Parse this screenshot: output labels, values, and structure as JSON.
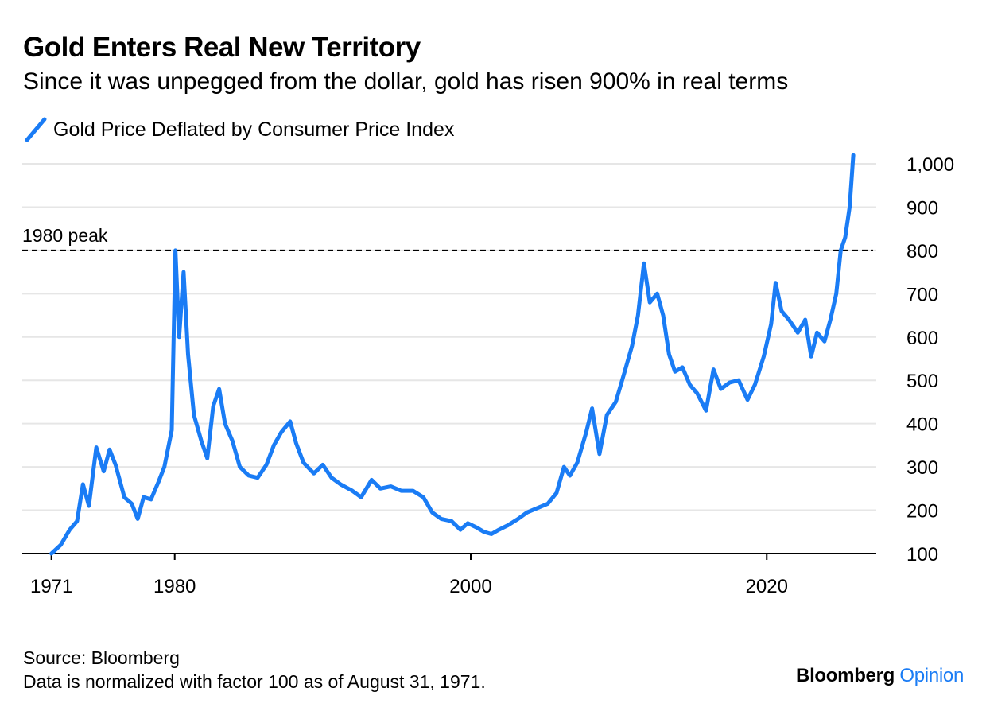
{
  "chart_data": {
    "type": "line",
    "title": "Gold Enters Real New Territory",
    "subtitle": "Since it was unpegged from the dollar, gold has risen 900% in real terms",
    "series": [
      {
        "name": "Gold Price Deflated by Consumer Price Index",
        "color": "#1a7cf5",
        "points": [
          [
            1971.67,
            100
          ],
          [
            1972.3,
            120
          ],
          [
            1972.9,
            155
          ],
          [
            1973.4,
            175
          ],
          [
            1973.8,
            260
          ],
          [
            1974.2,
            210
          ],
          [
            1974.7,
            345
          ],
          [
            1975.2,
            290
          ],
          [
            1975.6,
            340
          ],
          [
            1976.0,
            305
          ],
          [
            1976.6,
            230
          ],
          [
            1977.1,
            215
          ],
          [
            1977.5,
            180
          ],
          [
            1977.9,
            230
          ],
          [
            1978.4,
            225
          ],
          [
            1978.9,
            265
          ],
          [
            1979.3,
            300
          ],
          [
            1979.8,
            385
          ],
          [
            1980.05,
            800
          ],
          [
            1980.3,
            600
          ],
          [
            1980.6,
            750
          ],
          [
            1980.9,
            560
          ],
          [
            1981.3,
            420
          ],
          [
            1981.8,
            360
          ],
          [
            1982.2,
            320
          ],
          [
            1982.6,
            440
          ],
          [
            1983.0,
            480
          ],
          [
            1983.4,
            400
          ],
          [
            1983.9,
            360
          ],
          [
            1984.4,
            300
          ],
          [
            1985.0,
            280
          ],
          [
            1985.6,
            275
          ],
          [
            1986.2,
            305
          ],
          [
            1986.7,
            350
          ],
          [
            1987.2,
            380
          ],
          [
            1987.8,
            405
          ],
          [
            1988.2,
            355
          ],
          [
            1988.7,
            310
          ],
          [
            1989.4,
            285
          ],
          [
            1990.0,
            305
          ],
          [
            1990.6,
            275
          ],
          [
            1991.2,
            260
          ],
          [
            1992.0,
            245
          ],
          [
            1992.6,
            230
          ],
          [
            1993.3,
            270
          ],
          [
            1993.9,
            250
          ],
          [
            1994.6,
            255
          ],
          [
            1995.3,
            245
          ],
          [
            1996.1,
            245
          ],
          [
            1996.8,
            230
          ],
          [
            1997.4,
            195
          ],
          [
            1998.0,
            180
          ],
          [
            1998.7,
            175
          ],
          [
            1999.3,
            155
          ],
          [
            1999.8,
            170
          ],
          [
            2000.4,
            160
          ],
          [
            2000.9,
            150
          ],
          [
            2001.4,
            145
          ],
          [
            2001.9,
            155
          ],
          [
            2002.5,
            165
          ],
          [
            2003.2,
            180
          ],
          [
            2003.8,
            195
          ],
          [
            2004.5,
            205
          ],
          [
            2005.2,
            215
          ],
          [
            2005.8,
            240
          ],
          [
            2006.3,
            300
          ],
          [
            2006.7,
            280
          ],
          [
            2007.2,
            310
          ],
          [
            2007.8,
            380
          ],
          [
            2008.2,
            435
          ],
          [
            2008.7,
            330
          ],
          [
            2009.2,
            420
          ],
          [
            2009.8,
            450
          ],
          [
            2010.4,
            520
          ],
          [
            2010.9,
            580
          ],
          [
            2011.3,
            650
          ],
          [
            2011.7,
            770
          ],
          [
            2012.1,
            680
          ],
          [
            2012.6,
            700
          ],
          [
            2013.0,
            650
          ],
          [
            2013.4,
            560
          ],
          [
            2013.8,
            520
          ],
          [
            2014.3,
            530
          ],
          [
            2014.8,
            490
          ],
          [
            2015.3,
            470
          ],
          [
            2015.9,
            430
          ],
          [
            2016.4,
            525
          ],
          [
            2016.9,
            480
          ],
          [
            2017.5,
            495
          ],
          [
            2018.1,
            500
          ],
          [
            2018.7,
            455
          ],
          [
            2019.2,
            490
          ],
          [
            2019.8,
            555
          ],
          [
            2020.3,
            630
          ],
          [
            2020.6,
            725
          ],
          [
            2021.0,
            660
          ],
          [
            2021.5,
            640
          ],
          [
            2022.1,
            610
          ],
          [
            2022.6,
            640
          ],
          [
            2023.0,
            555
          ],
          [
            2023.4,
            610
          ],
          [
            2023.9,
            590
          ],
          [
            2024.3,
            640
          ],
          [
            2024.7,
            700
          ],
          [
            2025.0,
            800
          ],
          [
            2025.3,
            830
          ],
          [
            2025.6,
            900
          ],
          [
            2025.85,
            1020
          ]
        ]
      }
    ],
    "x_ticks": [
      {
        "value": 1971.67,
        "label": "1971"
      },
      {
        "value": 1980,
        "label": "1980"
      },
      {
        "value": 2000,
        "label": "2000"
      },
      {
        "value": 2020,
        "label": "2020"
      }
    ],
    "y_ticks": [
      {
        "value": 1000,
        "label": "1,000"
      },
      {
        "value": 900,
        "label": "900"
      },
      {
        "value": 800,
        "label": "800"
      },
      {
        "value": 700,
        "label": "700"
      },
      {
        "value": 600,
        "label": "600"
      },
      {
        "value": 500,
        "label": "500"
      },
      {
        "value": 400,
        "label": "400"
      },
      {
        "value": 300,
        "label": "300"
      },
      {
        "value": 200,
        "label": "200"
      },
      {
        "value": 100,
        "label": "100"
      }
    ],
    "xlim": [
      1969.7,
      2027.4
    ],
    "ylim": [
      100,
      1000
    ],
    "grid": true,
    "legend_position": "top-left",
    "annotations": [
      {
        "type": "hline",
        "value": 800,
        "label": "1980 peak",
        "style": "dashed"
      }
    ]
  },
  "footer": {
    "source": "Source: Bloomberg",
    "note": "Data is normalized with factor 100 as of August 31, 1971."
  },
  "brand": {
    "name": "Bloomberg",
    "suffix": "Opinion"
  }
}
